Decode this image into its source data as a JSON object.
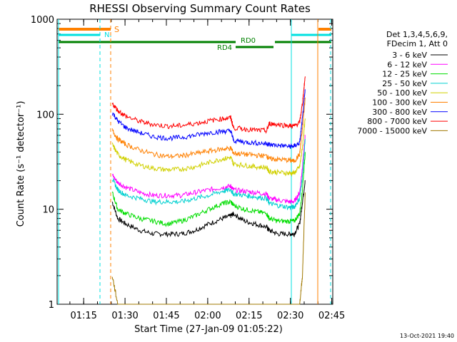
{
  "chart_data": {
    "type": "line",
    "title": "RHESSI Observing Summary Count Rates",
    "xlabel": "Start Time (27-Jan-09 01:05:22)",
    "ylabel": "Count Rate (s⁻¹ detector⁻¹)",
    "yscale": "log",
    "ylim": [
      1,
      1000
    ],
    "xlim_minutes": [
      0,
      100
    ],
    "x_tick_labels": [
      "01:15",
      "01:30",
      "01:45",
      "02:00",
      "02:15",
      "02:30",
      "02:45"
    ],
    "y_tick_labels": [
      "1",
      "10",
      "100",
      "1000"
    ],
    "footer": "13-Oct-2021 19:40",
    "legend_header": [
      "Det 1,3,4,5,6,9,",
      "FDecim 1, Att 0"
    ],
    "flags": [
      {
        "label": "S",
        "color": "#ff8000"
      },
      {
        "label": "NI",
        "color": "#00e0e0"
      },
      {
        "label": "RD0",
        "color": "#008000"
      },
      {
        "label": "RD4",
        "color": "#008000"
      }
    ],
    "x_minutes": [
      20,
      22,
      25,
      30,
      35,
      40,
      45,
      50,
      55,
      60,
      63,
      64,
      68,
      72,
      76,
      77,
      80,
      84,
      86,
      88,
      89,
      90
    ],
    "series": [
      {
        "name": "3 - 6 keV",
        "color": "#000000",
        "values": [
          12,
          8,
          7,
          6,
          5.5,
          5.5,
          5.5,
          6,
          7,
          8,
          8.5,
          9,
          7.5,
          7,
          6.5,
          6,
          5.5,
          5.5,
          5.5,
          7,
          12,
          20
        ]
      },
      {
        "name": "6 - 12 keV",
        "color": "#ff00ff",
        "values": [
          23,
          19,
          17,
          15,
          14,
          14,
          14,
          15,
          16,
          17,
          17.5,
          16,
          15.5,
          15,
          14.5,
          13,
          12.5,
          12,
          12,
          15,
          28,
          60
        ]
      },
      {
        "name": "12 - 25 keV",
        "color": "#00dd00",
        "values": [
          15,
          10,
          9,
          8,
          7.5,
          7,
          7.5,
          8.5,
          10,
          11.5,
          12,
          11,
          10,
          9.5,
          9,
          8,
          7.5,
          7.5,
          7.5,
          9,
          16,
          40
        ]
      },
      {
        "name": "25 - 50 keV",
        "color": "#00d0d0",
        "values": [
          21,
          16,
          14,
          13,
          12,
          12,
          12,
          13,
          14,
          15.5,
          16,
          14.5,
          14,
          13.5,
          13,
          11.5,
          11,
          10.5,
          10.5,
          13,
          22,
          55
        ]
      },
      {
        "name": "50 - 100 keV",
        "color": "#d0d000",
        "values": [
          48,
          38,
          33,
          29,
          27,
          26,
          26.5,
          28,
          31,
          34,
          35,
          30,
          29,
          28,
          27.5,
          25,
          24.5,
          24,
          24,
          28,
          45,
          90
        ]
      },
      {
        "name": "100 - 300 keV",
        "color": "#ff8000",
        "values": [
          68,
          55,
          48,
          42,
          38,
          36,
          36.5,
          38.5,
          41,
          43,
          44,
          39,
          38,
          37,
          36.5,
          34,
          33.5,
          33,
          32,
          38,
          70,
          150
        ]
      },
      {
        "name": "300 - 800 keV",
        "color": "#0000ff",
        "values": [
          105,
          85,
          72,
          64,
          58,
          56,
          57,
          60,
          64,
          66,
          67,
          53,
          51,
          50,
          49,
          48,
          47,
          46,
          46,
          50,
          90,
          180
        ]
      },
      {
        "name": "800 - 7000 keV",
        "color": "#ff0000",
        "values": [
          130,
          110,
          95,
          84,
          78,
          75,
          76,
          80,
          85,
          90,
          92,
          72,
          70,
          68,
          67,
          80,
          78,
          76,
          75,
          82,
          130,
          250
        ]
      },
      {
        "name": "7000 - 15000 keV",
        "color": "#a07800",
        "values": [
          2,
          1,
          1,
          1,
          1,
          1,
          1,
          1,
          1,
          1,
          1,
          1,
          1,
          1,
          1,
          1,
          1,
          1,
          1,
          1,
          2,
          15
        ]
      }
    ]
  }
}
